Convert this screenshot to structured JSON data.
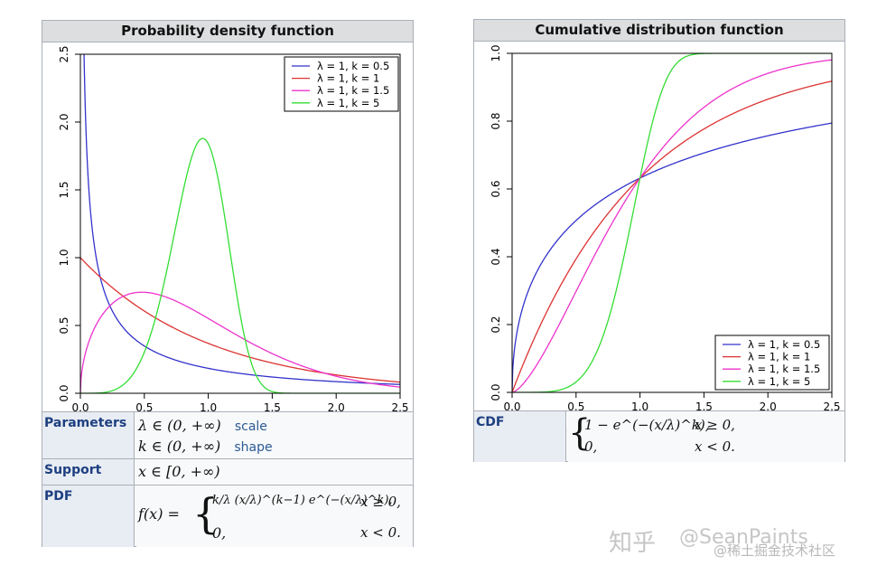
{
  "chart_data": [
    {
      "type": "line",
      "title": "Probability density function",
      "xlim": [
        0,
        2.5
      ],
      "ylim": [
        0,
        2.5
      ],
      "x_ticks": [
        "0.0",
        "0.5",
        "1.0",
        "1.5",
        "2.0",
        "2.5"
      ],
      "y_ticks": [
        "0.0",
        "0.5",
        "1.0",
        "1.5",
        "2.0",
        "2.5"
      ],
      "legend_position": "top-right",
      "grid": false,
      "series": [
        {
          "name": "λ = 1, k = 0.5",
          "color": "#3333cc",
          "lambda": 1,
          "k": 0.5
        },
        {
          "name": "λ = 1, k = 1",
          "color": "#dd3333",
          "lambda": 1,
          "k": 1
        },
        {
          "name": "λ = 1, k = 1.5",
          "color": "#ee33cc",
          "lambda": 1,
          "k": 1.5
        },
        {
          "name": "λ = 1, k = 5",
          "color": "#33dd33",
          "lambda": 1,
          "k": 5
        }
      ]
    },
    {
      "type": "line",
      "title": "Cumulative distribution function",
      "xlim": [
        0,
        2.5
      ],
      "ylim": [
        0,
        1.0
      ],
      "x_ticks": [
        "0.0",
        "0.5",
        "1.0",
        "1.5",
        "2.0",
        "2.5"
      ],
      "y_ticks": [
        "0.0",
        "0.2",
        "0.4",
        "0.6",
        "0.8",
        "1.0"
      ],
      "legend_position": "bottom-right",
      "grid": false,
      "series": [
        {
          "name": "λ = 1, k = 0.5",
          "color": "#3333cc",
          "lambda": 1,
          "k": 0.5
        },
        {
          "name": "λ = 1, k = 1",
          "color": "#dd3333",
          "lambda": 1,
          "k": 1
        },
        {
          "name": "λ = 1, k = 1.5",
          "color": "#ee33cc",
          "lambda": 1,
          "k": 1.5
        },
        {
          "name": "λ = 1, k = 5",
          "color": "#33dd33",
          "lambda": 1,
          "k": 5
        }
      ]
    }
  ],
  "infobox_left": {
    "parameters": {
      "label": "Parameters",
      "lambda_formula": "λ ∈ (0, +∞)",
      "lambda_note": "scale",
      "k_formula": "k ∈ (0, +∞)",
      "k_note": "shape"
    },
    "support": {
      "label": "Support",
      "formula": "x ∈ [0, +∞)"
    },
    "pdf": {
      "label": "PDF",
      "lhs": "f(x) =",
      "case1": "k/λ (x/λ)^(k−1) e^(−(x/λ)^k),",
      "cond1": "x ≥ 0,",
      "case2": "0,",
      "cond2": "x < 0."
    }
  },
  "infobox_right": {
    "cdf": {
      "label": "CDF",
      "case1": "1 − e^(−(x/λ)^k),",
      "cond1": "x ≥ 0,",
      "case2": "0,",
      "cond2": "x < 0."
    }
  },
  "watermark": {
    "zhihu": "知乎",
    "handle": "@SeanPaints",
    "juejin": "@稀土掘金技术社区"
  }
}
